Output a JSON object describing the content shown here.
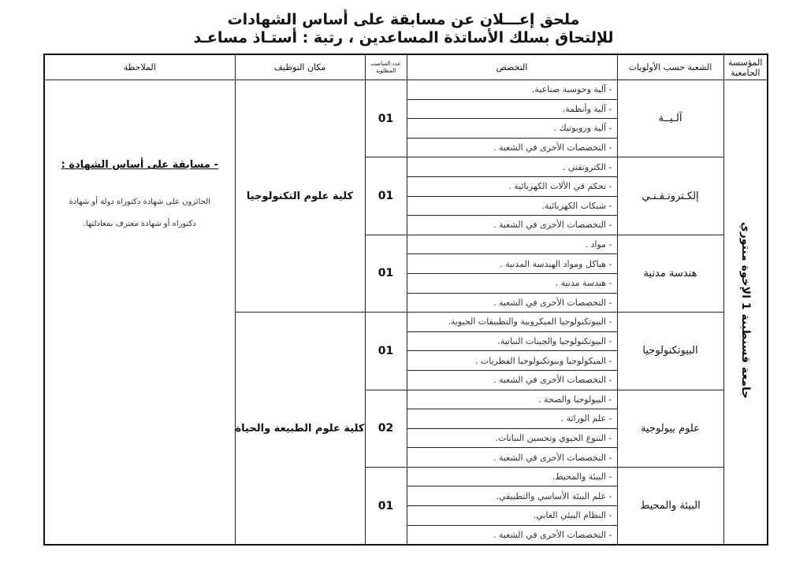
{
  "title_line1": "ملحق إعـــلان عن مسابقة على أساس الشهادات",
  "title_line2": "للإلتحاق بسلك الأساتذة المساعدين ، رتبة : أستـاذ مساعـد",
  "headers": {
    "institution": "المؤسسة الجامعية",
    "field": "الشعبة حسب الأولويات",
    "specialty": "التخصص",
    "count": "عدد المناصب المطلوبة",
    "place": "مكان التوظيف",
    "note": "الملاحظة"
  },
  "institution": "جامعة قسنطينة 1 الإخوة منتوري",
  "note": {
    "heading": "- مسابقة على أساس الشهادة :",
    "body": "الحائزون على شهادة دكتوراه دولة أو شهادة دكتوراه أو شهادة معترف بمعادلتها."
  },
  "places": [
    "كلية علوم التكنولوجيا",
    "كلية علوم الطبيعة والحياة"
  ],
  "groups": [
    {
      "field": "آلـيــة",
      "count": "01",
      "specialties": [
        "- آلية وحوسبة صناعية.",
        "- آلية وأنظمة.",
        "- آلية وروبوتيك .",
        "- التخصصات الأخرى في الشعبة ."
      ]
    },
    {
      "field": "إلكـتروتـقـنـي",
      "count": "01",
      "specialties": [
        "- الكتروتقني .",
        "- تحكم في الألات الكهربائية .",
        "- شبكات الكهربائية.",
        "- التخصصات الأخرى في الشعبة ."
      ]
    },
    {
      "field": "هندسة مدنية",
      "count": "01",
      "specialties": [
        "- مواد .",
        "- هياكل ومواد الهندسة المدنية .",
        "- هندسة مدنية .",
        "- التخصصات الأخرى في الشعبة ."
      ]
    },
    {
      "field": "البيوتكنولوجيا",
      "count": "01",
      "specialties": [
        "- البيوتكنولوجيا الميكروبية والتطبيقات الحيوية.",
        "- البيوتكنولوجيا والجينات النباتية.",
        "- الميكولوجيا وبيوتكنولوجيا الفطريات .",
        "- التخصصات الأخرى في الشعبة ."
      ]
    },
    {
      "field": "علوم بيولوجية",
      "count": "02",
      "specialties": [
        "- البيولوجيا والصحة .",
        "- علم الوراثة .",
        "- التنوع الحيوي وتحسين النباتات.",
        "- التخصصات الأخرى في الشعبة ."
      ]
    },
    {
      "field": "البيئة والمحيط",
      "count": "01",
      "specialties": [
        "- البيئة والمحيط.",
        "- علم البيئة الأساسي والتطبيقي.",
        "- النظام البيئي الغابي.",
        "- التخصصات الأخرى في الشعبة ."
      ]
    }
  ]
}
